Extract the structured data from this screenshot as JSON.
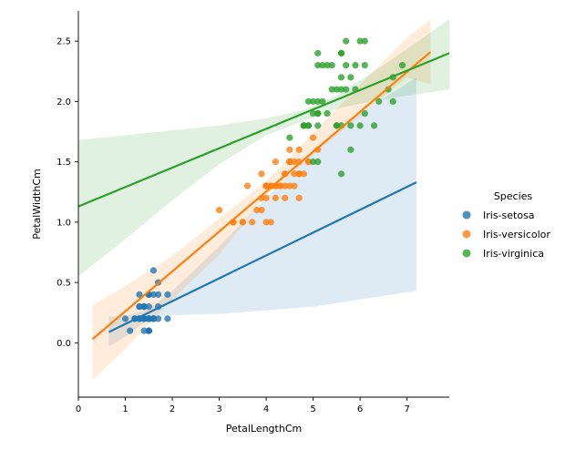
{
  "chart_data": {
    "type": "scatter",
    "xlabel": "PetalLengthCm",
    "ylabel": "PetalWidthCm",
    "xlim": [
      0,
      7.9
    ],
    "ylim": [
      -0.45,
      2.75
    ],
    "x_ticks": [
      "0",
      "1",
      "2",
      "3",
      "4",
      "5",
      "6",
      "7"
    ],
    "y_ticks": [
      "0.0",
      "0.5",
      "1.0",
      "1.5",
      "2.0",
      "2.5"
    ],
    "legend_title": "Species",
    "legend_position": "right",
    "grid": false,
    "series": [
      {
        "name": "Iris-setosa",
        "color": "#1f77b4",
        "x": [
          1.4,
          1.4,
          1.3,
          1.5,
          1.4,
          1.7,
          1.4,
          1.5,
          1.4,
          1.5,
          1.5,
          1.6,
          1.4,
          1.1,
          1.2,
          1.5,
          1.3,
          1.4,
          1.7,
          1.5,
          1.7,
          1.5,
          1.0,
          1.7,
          1.9,
          1.6,
          1.6,
          1.5,
          1.4,
          1.6,
          1.6,
          1.5,
          1.5,
          1.4,
          1.5,
          1.2,
          1.3,
          1.5,
          1.3,
          1.5,
          1.3,
          1.3,
          1.3,
          1.6,
          1.9,
          1.4,
          1.6,
          1.4,
          1.5,
          1.4
        ],
        "y": [
          0.2,
          0.2,
          0.2,
          0.2,
          0.2,
          0.4,
          0.3,
          0.2,
          0.2,
          0.1,
          0.2,
          0.2,
          0.1,
          0.1,
          0.2,
          0.4,
          0.4,
          0.3,
          0.3,
          0.3,
          0.2,
          0.4,
          0.2,
          0.5,
          0.2,
          0.2,
          0.4,
          0.2,
          0.2,
          0.2,
          0.2,
          0.4,
          0.1,
          0.2,
          0.1,
          0.2,
          0.2,
          0.1,
          0.2,
          0.2,
          0.3,
          0.3,
          0.2,
          0.6,
          0.4,
          0.3,
          0.2,
          0.2,
          0.2,
          0.2
        ],
        "fit": {
          "x": [
            0.65,
            7.2
          ],
          "y": [
            0.09,
            1.33
          ]
        },
        "band_upper": [
          [
            0.65,
            0.22
          ],
          [
            1.0,
            0.22
          ],
          [
            1.5,
            0.28
          ],
          [
            2.0,
            0.43
          ],
          [
            3.0,
            0.8
          ],
          [
            4.0,
            1.2
          ],
          [
            5.0,
            1.6
          ],
          [
            6.0,
            1.9
          ],
          [
            7.2,
            2.2
          ]
        ],
        "band_lower": [
          [
            0.65,
            -0.03
          ],
          [
            1.0,
            0.05
          ],
          [
            1.5,
            0.2
          ],
          [
            2.0,
            0.23
          ],
          [
            3.0,
            0.24
          ],
          [
            4.0,
            0.27
          ],
          [
            5.0,
            0.3
          ],
          [
            6.0,
            0.36
          ],
          [
            7.2,
            0.43
          ]
        ]
      },
      {
        "name": "Iris-versicolor",
        "color": "#ff7f0e",
        "x": [
          4.7,
          4.5,
          4.9,
          4.0,
          4.6,
          4.5,
          4.7,
          3.3,
          4.6,
          3.9,
          3.5,
          4.2,
          4.0,
          4.7,
          3.6,
          4.4,
          4.5,
          4.1,
          4.5,
          3.9,
          4.8,
          4.0,
          4.9,
          4.7,
          4.3,
          4.4,
          4.8,
          5.0,
          4.5,
          3.5,
          3.8,
          3.7,
          3.9,
          5.1,
          4.5,
          4.5,
          4.7,
          4.4,
          4.1,
          4.0,
          4.4,
          4.6,
          4.0,
          3.3,
          4.2,
          4.2,
          4.2,
          4.3,
          3.0,
          4.1
        ],
        "y": [
          1.4,
          1.5,
          1.5,
          1.3,
          1.5,
          1.3,
          1.6,
          1.0,
          1.3,
          1.4,
          1.0,
          1.5,
          1.0,
          1.4,
          1.3,
          1.4,
          1.5,
          1.0,
          1.5,
          1.1,
          1.8,
          1.3,
          1.5,
          1.2,
          1.3,
          1.4,
          1.4,
          1.7,
          1.5,
          1.0,
          1.1,
          1.0,
          1.2,
          1.6,
          1.5,
          1.6,
          1.5,
          1.3,
          1.3,
          1.3,
          1.2,
          1.4,
          1.2,
          1.0,
          1.3,
          1.2,
          1.3,
          1.3,
          1.1,
          1.3
        ],
        "fit": {
          "x": [
            0.3,
            7.5
          ],
          "y": [
            0.03,
            2.41
          ]
        },
        "band_upper": [
          [
            0.3,
            0.31
          ],
          [
            1.0,
            0.47
          ],
          [
            2.0,
            0.72
          ],
          [
            3.0,
            1.03
          ],
          [
            4.0,
            1.34
          ],
          [
            5.0,
            1.74
          ],
          [
            6.0,
            2.14
          ],
          [
            7.0,
            2.53
          ],
          [
            7.5,
            2.68
          ]
        ],
        "band_lower": [
          [
            0.3,
            -0.31
          ],
          [
            1.0,
            -0.05
          ],
          [
            2.0,
            0.36
          ],
          [
            3.0,
            0.73
          ],
          [
            4.0,
            1.22
          ],
          [
            5.0,
            1.56
          ],
          [
            6.0,
            1.88
          ],
          [
            7.0,
            2.2
          ],
          [
            7.5,
            2.14
          ]
        ]
      },
      {
        "name": "Iris-virginica",
        "color": "#2ca02c",
        "x": [
          6.0,
          5.1,
          5.9,
          5.6,
          5.8,
          6.6,
          4.5,
          6.3,
          5.8,
          6.1,
          5.1,
          5.3,
          5.5,
          5.0,
          5.1,
          5.3,
          5.5,
          6.7,
          6.9,
          5.0,
          5.7,
          4.9,
          6.7,
          4.9,
          5.7,
          6.0,
          4.8,
          4.9,
          5.6,
          5.8,
          6.1,
          6.4,
          5.6,
          5.1,
          5.6,
          6.1,
          5.6,
          5.5,
          4.8,
          5.4,
          5.6,
          5.1,
          5.1,
          5.9,
          5.7,
          5.2,
          5.0,
          5.2,
          5.4,
          5.1
        ],
        "y": [
          2.5,
          1.9,
          2.1,
          1.8,
          2.2,
          2.1,
          1.7,
          1.8,
          1.8,
          2.5,
          2.0,
          1.9,
          2.1,
          2.0,
          2.4,
          2.3,
          1.8,
          2.2,
          2.3,
          1.5,
          2.3,
          2.0,
          2.0,
          1.8,
          2.1,
          1.8,
          1.8,
          1.8,
          2.1,
          1.6,
          1.9,
          2.0,
          2.2,
          1.5,
          1.4,
          2.3,
          2.4,
          1.8,
          1.8,
          2.1,
          2.4,
          2.3,
          1.9,
          2.3,
          2.5,
          2.3,
          1.9,
          2.0,
          2.3,
          1.8
        ],
        "fit": {
          "x": [
            0,
            7.9
          ],
          "y": [
            1.13,
            2.4
          ]
        },
        "band_upper": [
          [
            0,
            1.68
          ],
          [
            1.0,
            1.72
          ],
          [
            2.0,
            1.76
          ],
          [
            3.0,
            1.8
          ],
          [
            4.0,
            1.86
          ],
          [
            4.8,
            1.93
          ],
          [
            5.5,
            2.05
          ],
          [
            6.5,
            2.3
          ],
          [
            7.9,
            2.68
          ]
        ],
        "band_lower": [
          [
            0,
            0.55
          ],
          [
            1.0,
            0.86
          ],
          [
            2.0,
            1.18
          ],
          [
            3.0,
            1.48
          ],
          [
            4.0,
            1.72
          ],
          [
            4.8,
            1.84
          ],
          [
            5.5,
            1.94
          ],
          [
            6.5,
            2.02
          ],
          [
            7.9,
            2.1
          ]
        ]
      }
    ]
  }
}
